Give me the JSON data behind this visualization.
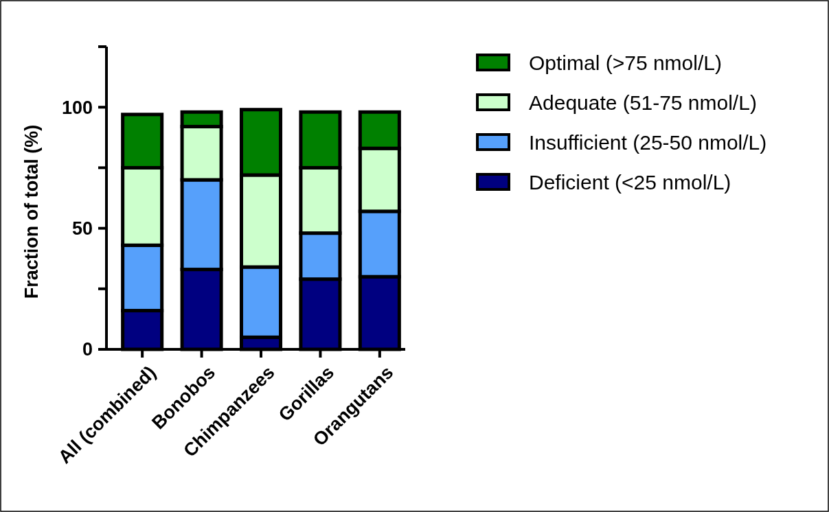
{
  "chart_data": {
    "type": "bar",
    "stacked": true,
    "ylabel": "Fraction of total (%)",
    "categories": [
      "All (combined)",
      "Bonobos",
      "Chimpanzees",
      "Gorillas",
      "Orangutans"
    ],
    "ylim": [
      0,
      125
    ],
    "yticks": [
      0,
      {
        "value": 25,
        "label": null
      },
      50,
      {
        "value": 75,
        "label": null
      },
      100,
      {
        "value": 125,
        "label": null
      }
    ],
    "legend": "top right",
    "grid": false,
    "series": [
      {
        "name": "Deficient (<25 nmol/L)",
        "color": "#000080",
        "values": [
          16,
          33,
          5,
          29,
          30
        ]
      },
      {
        "name": "Insufficient (25-50 nmol/L)",
        "color": "#56a0fb",
        "values": [
          27,
          37,
          29,
          19,
          27
        ]
      },
      {
        "name": "Adequate (51-75 nmol/L)",
        "color": "#ccffcc",
        "values": [
          32,
          22,
          38,
          27,
          26
        ]
      },
      {
        "name": "Optimal (>75 nmol/L)",
        "color": "#008000",
        "values": [
          22,
          6,
          27,
          23,
          15
        ]
      }
    ]
  }
}
